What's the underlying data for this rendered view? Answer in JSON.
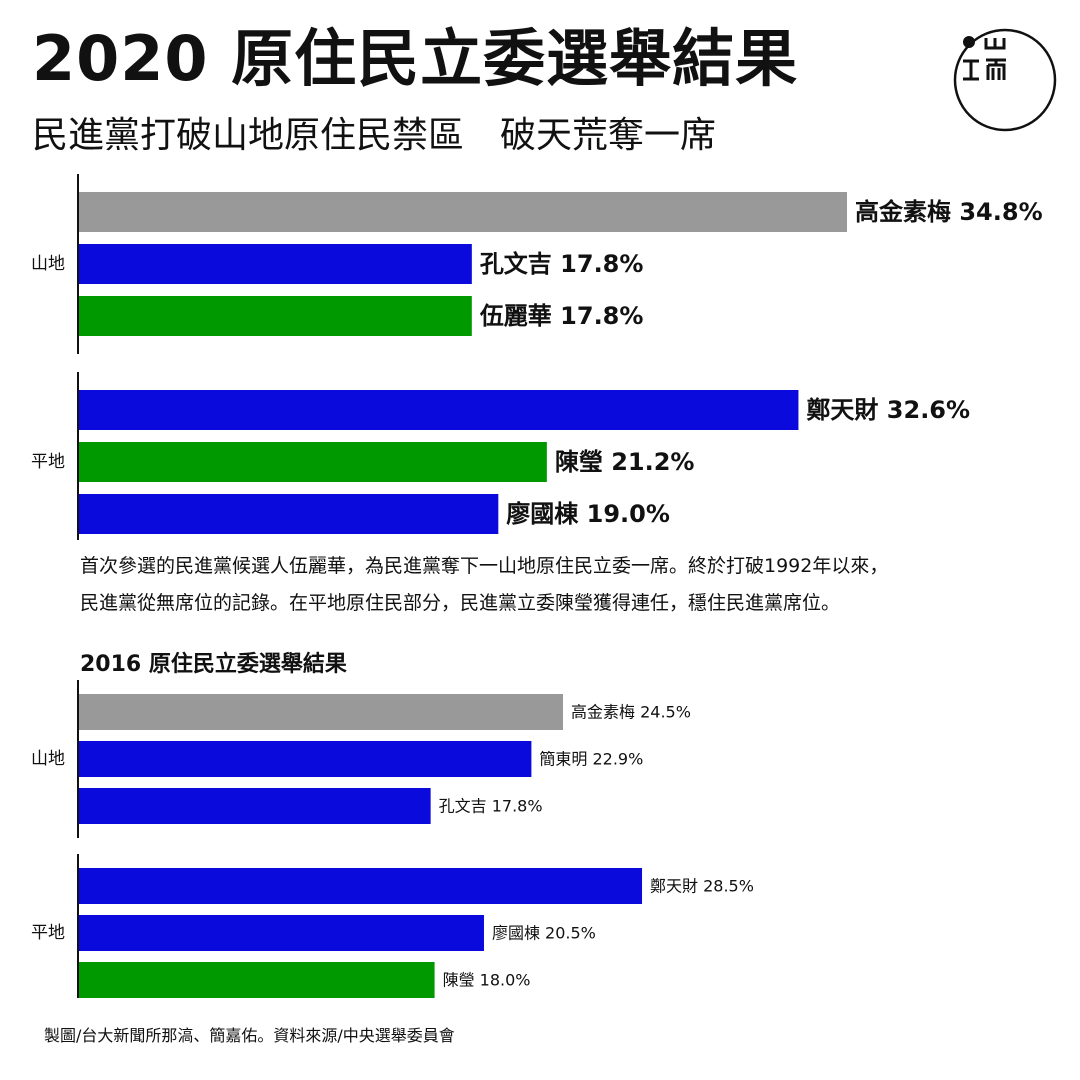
{
  "header": {
    "title": "2020 原住民立委選舉結果",
    "subtitle": "民進黨打破山地原住民禁區　破天荒奪一席"
  },
  "logo": {
    "icon": "publisher-logo"
  },
  "colors": {
    "gray": "#999999",
    "blue": "#0a0adc",
    "green": "#009a00",
    "text": "#111111"
  },
  "note": {
    "line1": "首次參選的民進黨候選人伍麗華，為民進黨奪下一山地原住民立委一席。終於打破1992年以來，",
    "line2": "民進黨從無席位的記錄。在平地原住民部分，民進黨立委陳瑩獲得連任，穩住民進黨席位。"
  },
  "section2": {
    "title": "2016 原住民立委選舉結果"
  },
  "credit": {
    "text": "製圖/台大新聞所那滈、簡嘉佑。資料來源/中央選舉委員會"
  },
  "chart_data": [
    {
      "type": "bar",
      "orientation": "horizontal",
      "title": "2020 原住民立委選舉結果",
      "unit": "%",
      "groups": [
        {
          "label": "山地",
          "bars": [
            {
              "name": "高金素梅",
              "value": 34.8,
              "color": "gray"
            },
            {
              "name": "孔文吉",
              "value": 17.8,
              "color": "blue"
            },
            {
              "name": "伍麗華",
              "value": 17.8,
              "color": "green"
            }
          ]
        },
        {
          "label": "平地",
          "bars": [
            {
              "name": "鄭天財",
              "value": 32.6,
              "color": "blue"
            },
            {
              "name": "陳瑩",
              "value": 21.2,
              "color": "green"
            },
            {
              "name": "廖國棟",
              "value": 19.0,
              "color": "blue"
            }
          ]
        }
      ]
    },
    {
      "type": "bar",
      "orientation": "horizontal",
      "title": "2016 原住民立委選舉結果",
      "unit": "%",
      "groups": [
        {
          "label": "山地",
          "bars": [
            {
              "name": "高金素梅",
              "value": 24.5,
              "color": "gray"
            },
            {
              "name": "簡東明",
              "value": 22.9,
              "color": "blue"
            },
            {
              "name": "孔文吉",
              "value": 17.8,
              "color": "blue"
            }
          ]
        },
        {
          "label": "平地",
          "bars": [
            {
              "name": "鄭天財",
              "value": 28.5,
              "color": "blue"
            },
            {
              "name": "廖國棟",
              "value": 20.5,
              "color": "blue"
            },
            {
              "name": "陳瑩",
              "value": 18.0,
              "color": "green"
            }
          ]
        }
      ]
    }
  ]
}
